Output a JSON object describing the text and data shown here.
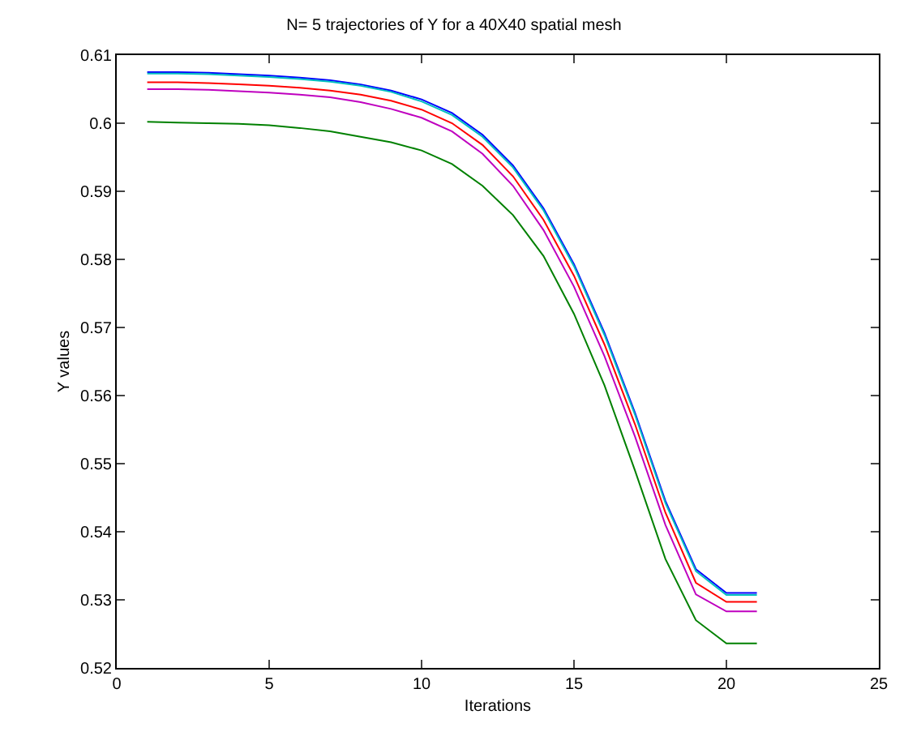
{
  "chart_data": {
    "type": "line",
    "title": "N= 5 trajectories of Y for a 40X40 spatial mesh",
    "xlabel": "Iterations",
    "ylabel": "Y values",
    "x": [
      1,
      2,
      3,
      4,
      5,
      6,
      7,
      8,
      9,
      10,
      11,
      12,
      13,
      14,
      15,
      16,
      17,
      18,
      19,
      20,
      21
    ],
    "xlim": [
      0,
      25
    ],
    "xticks": [
      0,
      5,
      10,
      15,
      20,
      25
    ],
    "ylim": [
      0.52,
      0.61
    ],
    "yticks": [
      0.52,
      0.53,
      0.54,
      0.55,
      0.56,
      0.57,
      0.58,
      0.59,
      0.6,
      0.61
    ],
    "grid": false,
    "marker": "none",
    "line_style": "solid",
    "series": [
      {
        "color": "#0000ff",
        "values": [
          0.6075,
          0.6075,
          0.6074,
          0.6072,
          0.607,
          0.6067,
          0.6063,
          0.6057,
          0.6048,
          0.6035,
          0.6015,
          0.5983,
          0.5938,
          0.5875,
          0.5793,
          0.5692,
          0.5575,
          0.5445,
          0.5345,
          0.531,
          0.531
        ]
      },
      {
        "color": "#008000",
        "values": [
          0.6002,
          0.6001,
          0.6,
          0.5999,
          0.5997,
          0.5993,
          0.5988,
          0.598,
          0.5972,
          0.596,
          0.594,
          0.5908,
          0.5865,
          0.5805,
          0.572,
          0.5615,
          0.549,
          0.536,
          0.527,
          0.5236,
          0.5236
        ]
      },
      {
        "color": "#ff0000",
        "values": [
          0.606,
          0.606,
          0.6059,
          0.6057,
          0.6055,
          0.6052,
          0.6048,
          0.6042,
          0.6033,
          0.602,
          0.6,
          0.5968,
          0.5922,
          0.5858,
          0.5776,
          0.5675,
          0.5558,
          0.5428,
          0.5325,
          0.5297,
          0.5297
        ]
      },
      {
        "color": "#00bfbf",
        "values": [
          0.6073,
          0.6073,
          0.6072,
          0.607,
          0.6068,
          0.6065,
          0.6061,
          0.6055,
          0.6046,
          0.6032,
          0.6012,
          0.598,
          0.5935,
          0.5872,
          0.579,
          0.5689,
          0.5572,
          0.5442,
          0.5342,
          0.5307,
          0.5307
        ]
      },
      {
        "color": "#bf00bf",
        "values": [
          0.605,
          0.605,
          0.6049,
          0.6047,
          0.6045,
          0.6042,
          0.6038,
          0.6031,
          0.6021,
          0.6008,
          0.5988,
          0.5955,
          0.5908,
          0.5843,
          0.576,
          0.5658,
          0.554,
          0.541,
          0.5308,
          0.5283,
          0.5283
        ]
      }
    ]
  }
}
